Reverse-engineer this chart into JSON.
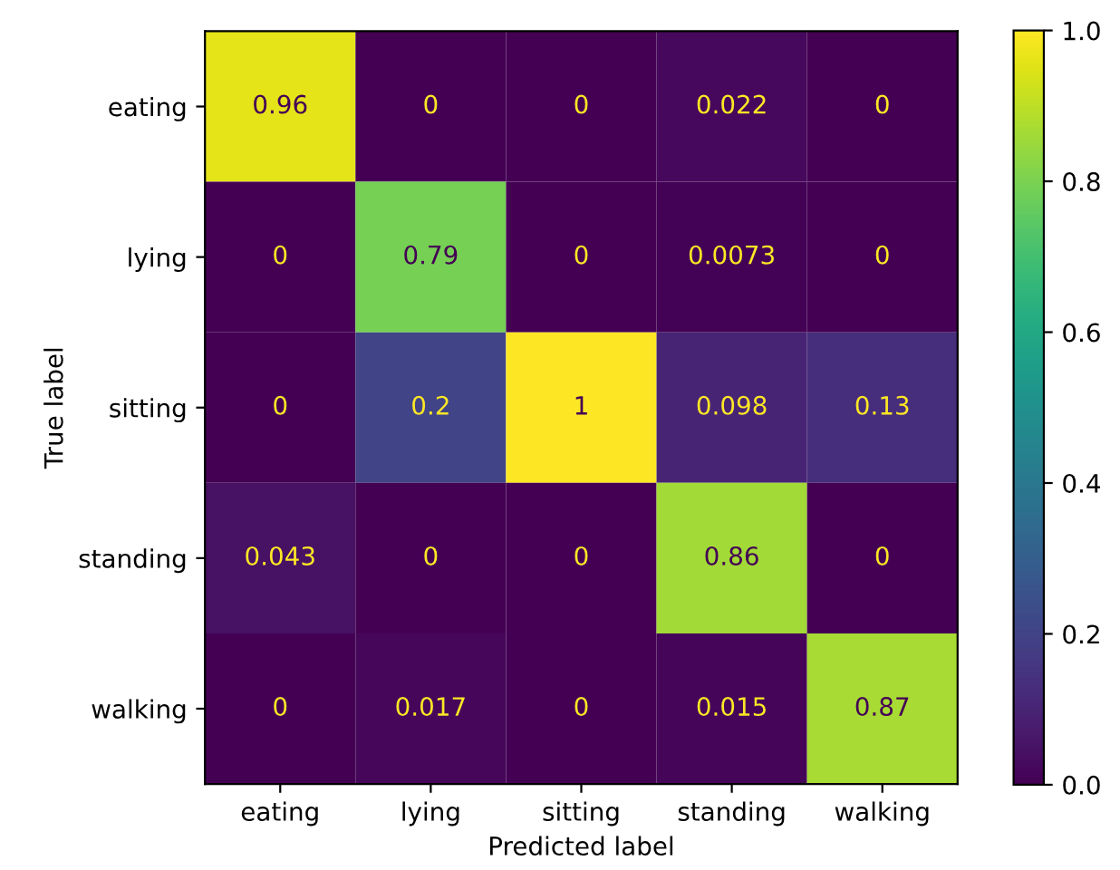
{
  "chart_data": {
    "type": "heatmap",
    "xlabel": "Predicted label",
    "ylabel": "True label",
    "categories": [
      "eating",
      "lying",
      "sitting",
      "standing",
      "walking"
    ],
    "y_categories": [
      "eating",
      "lying",
      "sitting",
      "standing",
      "walking"
    ],
    "cells": [
      [
        0.96,
        0,
        0,
        0.022,
        0
      ],
      [
        0,
        0.79,
        0,
        0.0073,
        0
      ],
      [
        0,
        0.2,
        1,
        0.098,
        0.13
      ],
      [
        0.043,
        0,
        0,
        0.86,
        0
      ],
      [
        0,
        0.017,
        0,
        0.015,
        0.87
      ]
    ],
    "data_labels": true,
    "clim": [
      0,
      1
    ],
    "cticks": [
      {
        "value": 0,
        "label": "0.0"
      },
      {
        "value": 0.2,
        "label": "0.2"
      },
      {
        "value": 0.4,
        "label": "0.4"
      },
      {
        "value": 0.6,
        "label": "0.6"
      },
      {
        "value": 0.8,
        "label": "0.8"
      },
      {
        "value": 1,
        "label": "1.0"
      }
    ],
    "grid": false
  }
}
